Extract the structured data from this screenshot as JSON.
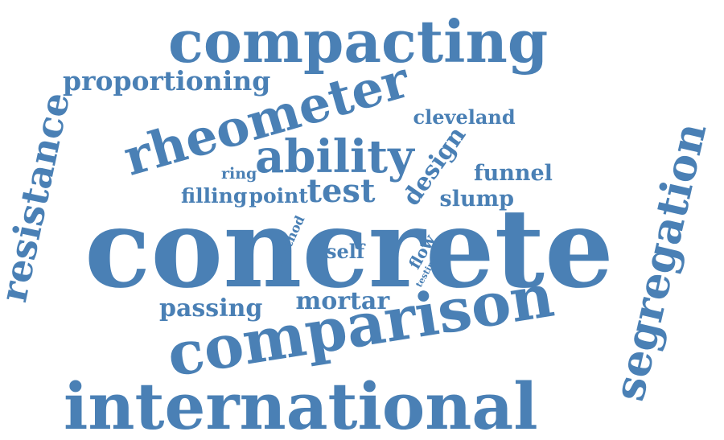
{
  "color": "#4a80b5",
  "words": [
    {
      "id": "concrete",
      "text": "concrete"
    },
    {
      "id": "comparison",
      "text": "comparison"
    },
    {
      "id": "international",
      "text": "international"
    },
    {
      "id": "compacting",
      "text": "compacting"
    },
    {
      "id": "rheometer",
      "text": "rheometer"
    },
    {
      "id": "segregation",
      "text": "segregation"
    },
    {
      "id": "resistance",
      "text": "resistance"
    },
    {
      "id": "ability",
      "text": "ability"
    },
    {
      "id": "proportioning",
      "text": "proportioning"
    },
    {
      "id": "test",
      "text": "test"
    },
    {
      "id": "design",
      "text": "design"
    },
    {
      "id": "mortar",
      "text": "mortar"
    },
    {
      "id": "passing",
      "text": "passing"
    },
    {
      "id": "funnel",
      "text": "funnel"
    },
    {
      "id": "slump",
      "text": "slump"
    },
    {
      "id": "cleveland",
      "text": "cleveland"
    },
    {
      "id": "filling",
      "text": "filling"
    },
    {
      "id": "point",
      "text": "point"
    },
    {
      "id": "self",
      "text": "self"
    },
    {
      "id": "ring",
      "text": "ring"
    },
    {
      "id": "method",
      "text": "method"
    },
    {
      "id": "flow",
      "text": "flow"
    },
    {
      "id": "testing",
      "text": "testing"
    }
  ]
}
